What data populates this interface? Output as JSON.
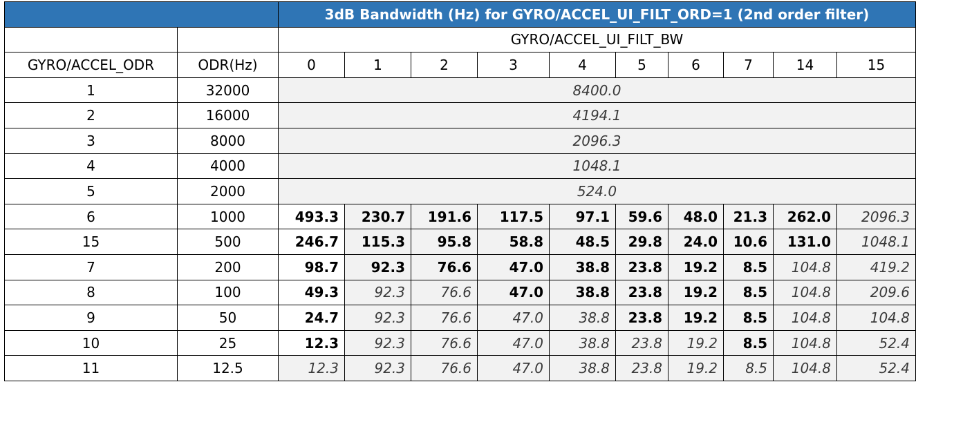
{
  "title": "3dB Bandwidth (Hz) for GYRO/ACCEL_UI_FILT_ORD=1 (2nd order filter)",
  "group_header": "GYRO/ACCEL_UI_FILT_BW",
  "col_headers": {
    "odr_code": "GYRO/ACCEL_ODR",
    "odr_hz": "ODR(Hz)",
    "bw": [
      "0",
      "1",
      "2",
      "3",
      "4",
      "5",
      "6",
      "7",
      "14",
      "15"
    ]
  },
  "merged_rows": [
    {
      "odr_code": "1",
      "odr_hz": "32000",
      "value": "8400.0"
    },
    {
      "odr_code": "2",
      "odr_hz": "16000",
      "value": "4194.1"
    },
    {
      "odr_code": "3",
      "odr_hz": "8000",
      "value": "2096.3"
    },
    {
      "odr_code": "4",
      "odr_hz": "4000",
      "value": "1048.1"
    },
    {
      "odr_code": "5",
      "odr_hz": "2000",
      "value": "524.0"
    }
  ],
  "rows": [
    {
      "odr_code": "6",
      "odr_hz": "1000",
      "values": [
        "493.3",
        "230.7",
        "191.6",
        "117.5",
        "97.1",
        "59.6",
        "48.0",
        "21.3",
        "262.0",
        "2096.3"
      ],
      "styles": [
        "b",
        "b",
        "b",
        "b",
        "b",
        "b",
        "b",
        "b",
        "b",
        "i"
      ]
    },
    {
      "odr_code": "15",
      "odr_hz": "500",
      "values": [
        "246.7",
        "115.3",
        "95.8",
        "58.8",
        "48.5",
        "29.8",
        "24.0",
        "10.6",
        "131.0",
        "1048.1"
      ],
      "styles": [
        "b",
        "b",
        "b",
        "b",
        "b",
        "b",
        "b",
        "b",
        "b",
        "i"
      ]
    },
    {
      "odr_code": "7",
      "odr_hz": "200",
      "values": [
        "98.7",
        "92.3",
        "76.6",
        "47.0",
        "38.8",
        "23.8",
        "19.2",
        "8.5",
        "104.8",
        "419.2"
      ],
      "styles": [
        "b",
        "b",
        "b",
        "b",
        "b",
        "b",
        "b",
        "b",
        "i",
        "i"
      ]
    },
    {
      "odr_code": "8",
      "odr_hz": "100",
      "values": [
        "49.3",
        "92.3",
        "76.6",
        "47.0",
        "38.8",
        "23.8",
        "19.2",
        "8.5",
        "104.8",
        "209.6"
      ],
      "styles": [
        "b",
        "i",
        "i",
        "b",
        "b",
        "b",
        "b",
        "b",
        "i",
        "i"
      ]
    },
    {
      "odr_code": "9",
      "odr_hz": "50",
      "values": [
        "24.7",
        "92.3",
        "76.6",
        "47.0",
        "38.8",
        "23.8",
        "19.2",
        "8.5",
        "104.8",
        "104.8"
      ],
      "styles": [
        "b",
        "i",
        "i",
        "i",
        "i",
        "b",
        "b",
        "b",
        "i",
        "i"
      ]
    },
    {
      "odr_code": "10",
      "odr_hz": "25",
      "values": [
        "12.3",
        "92.3",
        "76.6",
        "47.0",
        "38.8",
        "23.8",
        "19.2",
        "8.5",
        "104.8",
        "52.4"
      ],
      "styles": [
        "b",
        "i",
        "i",
        "i",
        "i",
        "i",
        "i",
        "b",
        "i",
        "i"
      ]
    },
    {
      "odr_code": "11",
      "odr_hz": "12.5",
      "values": [
        "12.3",
        "92.3",
        "76.6",
        "47.0",
        "38.8",
        "23.8",
        "19.2",
        "8.5",
        "104.8",
        "52.4"
      ],
      "styles": [
        "i",
        "i",
        "i",
        "i",
        "i",
        "i",
        "i",
        "i",
        "i",
        "i"
      ]
    }
  ]
}
